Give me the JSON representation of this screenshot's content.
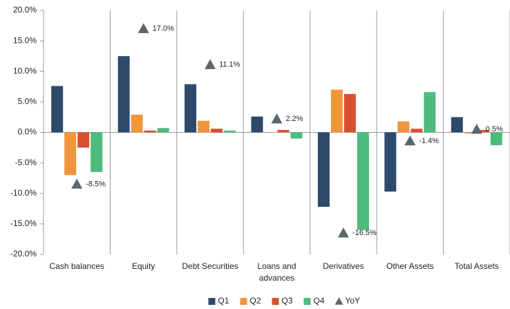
{
  "chart_data": {
    "type": "bar",
    "categories": [
      "Cash balances",
      "Equity",
      "Debt Securities",
      "Loans and advances",
      "Derivatives",
      "Other Assets",
      "Total Assets"
    ],
    "series": [
      {
        "name": "Q1",
        "color": "#2e4a6b",
        "values": [
          7.6,
          12.5,
          7.9,
          2.6,
          -12.2,
          -9.7,
          2.5
        ]
      },
      {
        "name": "Q2",
        "color": "#f0963a",
        "values": [
          -7.0,
          2.9,
          1.9,
          0.0,
          7.0,
          1.8,
          -0.2
        ]
      },
      {
        "name": "Q3",
        "color": "#d9512c",
        "values": [
          -2.5,
          0.3,
          0.6,
          0.4,
          6.3,
          0.6,
          0.4
        ]
      },
      {
        "name": "Q4",
        "color": "#4cbb7c",
        "values": [
          -6.5,
          0.7,
          0.3,
          -1.0,
          -16.0,
          6.6,
          -2.1
        ]
      },
      {
        "name": "YoY",
        "color": "#5a6670",
        "type": "scatter",
        "marker": "triangle",
        "values": [
          -8.5,
          17.0,
          11.1,
          2.2,
          -16.5,
          -1.4,
          0.5
        ],
        "value_labels": [
          "-8.5%",
          "17.0%",
          "11.1%",
          "2.2%",
          "-16.5%",
          "-1.4%",
          "0.5%"
        ]
      }
    ],
    "ylim": [
      -20,
      20
    ],
    "yticks": [
      {
        "value": -20,
        "label": "-20.0%"
      },
      {
        "value": -15,
        "label": "-15.0%"
      },
      {
        "value": -10,
        "label": "-10.0%"
      },
      {
        "value": -5,
        "label": "-5.0%"
      },
      {
        "value": 0,
        "label": "0.0%"
      },
      {
        "value": 5,
        "label": "5.0%"
      },
      {
        "value": 10,
        "label": "10.0%"
      },
      {
        "value": 15,
        "label": "15.0%"
      },
      {
        "value": 20,
        "label": "20.0%"
      }
    ],
    "legend": "bottom"
  }
}
